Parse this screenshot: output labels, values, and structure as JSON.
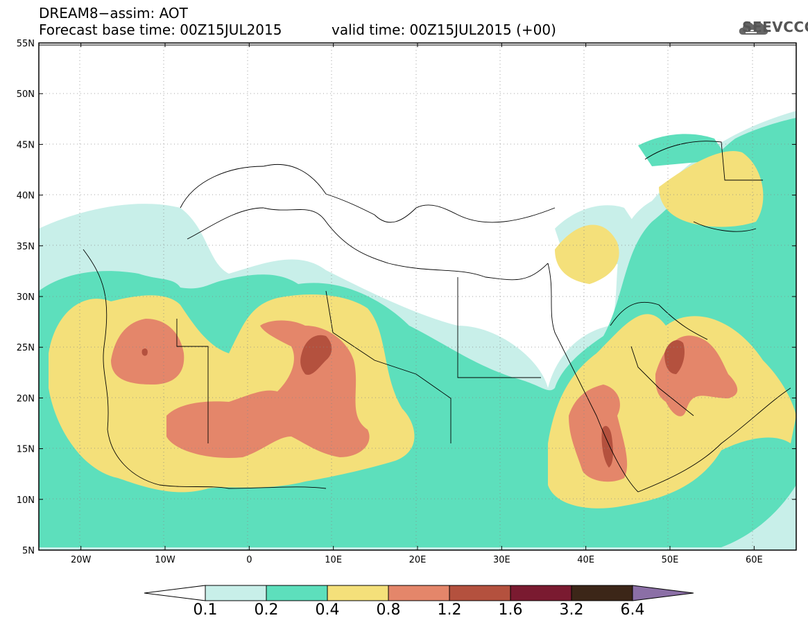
{
  "header": {
    "line1": "DREAM8−assim: AOT",
    "line2": "Forecast base time: 00Z15JUL2015",
    "line3": "valid time: 00Z15JUL2015 (+00)"
  },
  "logo": {
    "text": "SEEVCCC",
    "icon": "cloud-icon"
  },
  "map": {
    "lat_labels": [
      "55N",
      "50N",
      "45N",
      "40N",
      "35N",
      "30N",
      "25N",
      "20N",
      "15N",
      "10N",
      "5N"
    ],
    "lon_labels": [
      "20W",
      "10W",
      "0",
      "10E",
      "20E",
      "30E",
      "40E",
      "50E",
      "60E"
    ],
    "lat_range": [
      5,
      55
    ],
    "lon_range": [
      -25,
      65
    ],
    "grid": "dotted"
  },
  "colorbar": {
    "labels": [
      "0.1",
      "0.2",
      "0.4",
      "0.8",
      "1.2",
      "1.6",
      "3.2",
      "6.4"
    ],
    "colors": [
      "#ffffff",
      "#c8efe9",
      "#5ddfbc",
      "#f4e07a",
      "#e4866a",
      "#b4513e",
      "#7a1a30",
      "#3c2618",
      "#8b6fa6"
    ]
  }
}
